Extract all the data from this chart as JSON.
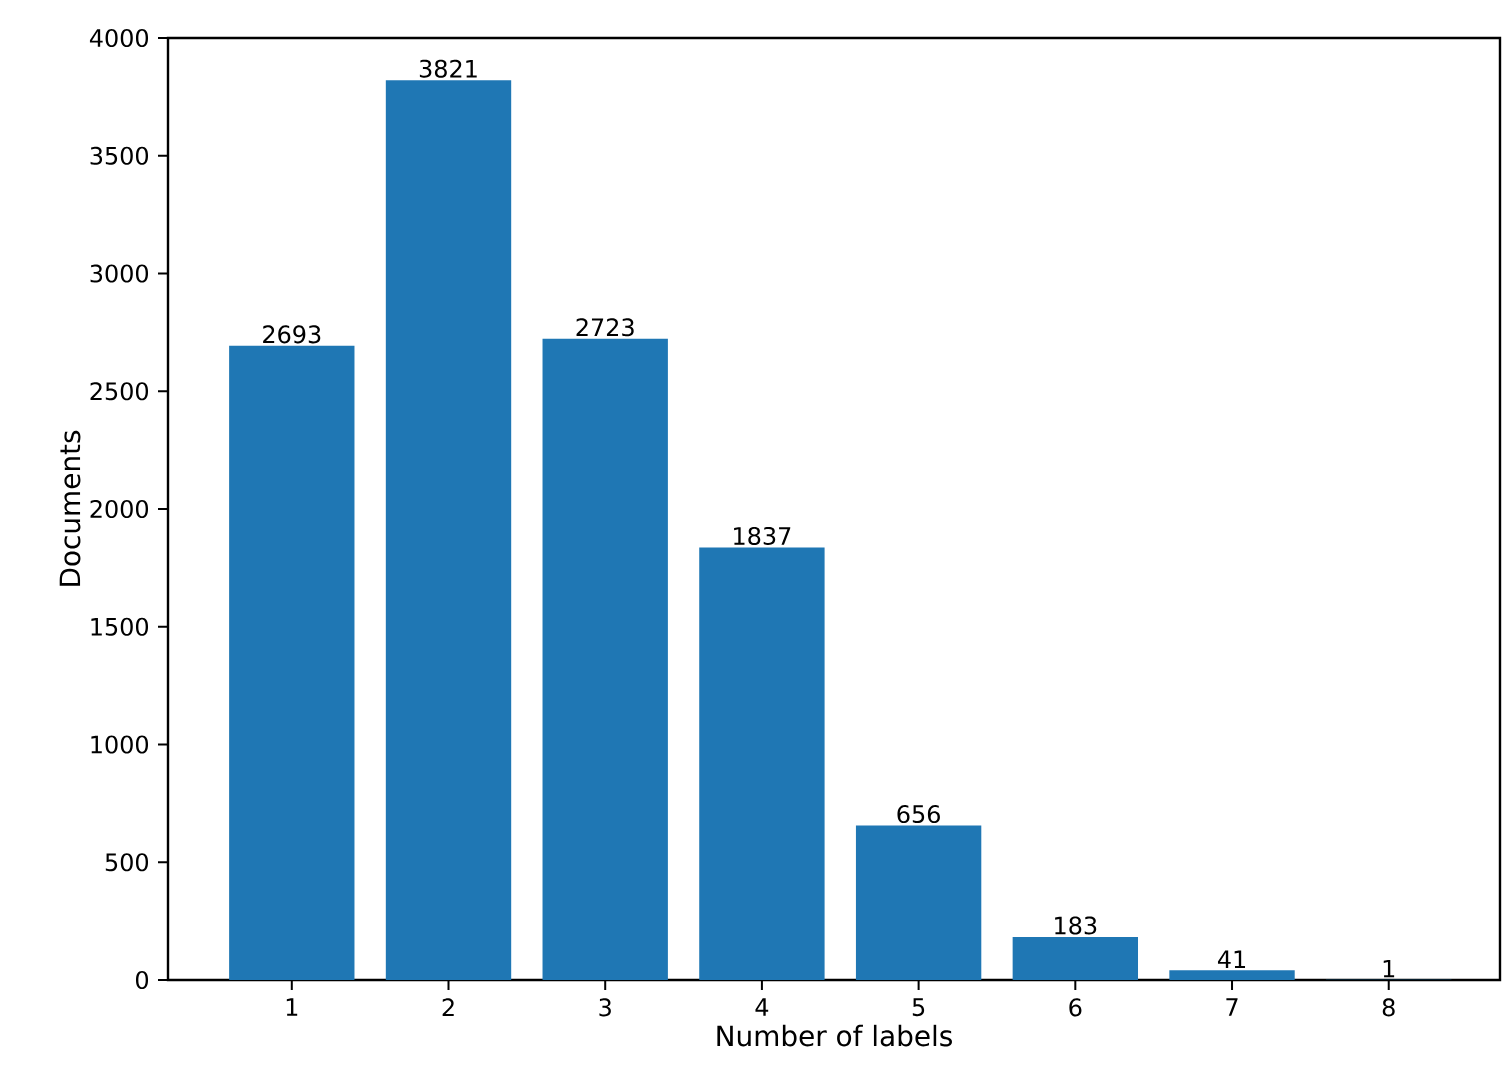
{
  "chart_data": {
    "type": "bar",
    "xlabel": "Number of labels",
    "ylabel": "Documents",
    "categories": [
      "1",
      "2",
      "3",
      "4",
      "5",
      "6",
      "7",
      "8"
    ],
    "values": [
      2693,
      3821,
      2723,
      1837,
      656,
      183,
      41,
      1
    ],
    "color": "#1f77b4",
    "data_labels": true,
    "ylim": [
      0,
      4000
    ],
    "yticks": [
      0,
      500,
      1000,
      1500,
      2000,
      2500,
      3000,
      3500,
      4000
    ]
  }
}
